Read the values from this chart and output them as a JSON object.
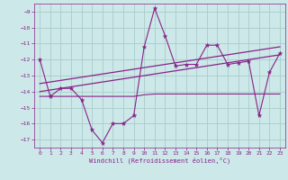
{
  "x": [
    0,
    1,
    2,
    3,
    4,
    5,
    6,
    7,
    8,
    9,
    10,
    11,
    12,
    13,
    14,
    15,
    16,
    17,
    18,
    19,
    20,
    21,
    22,
    23
  ],
  "line_main": [
    -12.0,
    -14.3,
    -13.8,
    -13.8,
    -14.5,
    -16.4,
    -17.2,
    -16.0,
    -16.0,
    -15.5,
    -11.2,
    -8.8,
    -10.5,
    -12.4,
    -12.3,
    -12.3,
    -11.1,
    -11.1,
    -12.3,
    -12.2,
    -12.1,
    -15.5,
    -12.8,
    -11.6
  ],
  "trend_upper": [
    -13.5,
    -13.4,
    -13.3,
    -13.2,
    -13.1,
    -13.0,
    -12.9,
    -12.8,
    -12.7,
    -12.6,
    -12.5,
    -12.4,
    -12.3,
    -12.2,
    -12.1,
    -12.0,
    -11.9,
    -11.8,
    -11.7,
    -11.6,
    -11.5,
    -11.4,
    -11.3,
    -11.2
  ],
  "trend_lower": [
    -14.0,
    -13.9,
    -13.8,
    -13.7,
    -13.6,
    -13.5,
    -13.4,
    -13.3,
    -13.2,
    -13.1,
    -13.0,
    -12.9,
    -12.8,
    -12.7,
    -12.6,
    -12.5,
    -12.4,
    -12.3,
    -12.2,
    -12.1,
    -12.0,
    -11.9,
    -11.8,
    -11.7
  ],
  "line_flat": [
    -14.3,
    -14.3,
    -14.3,
    -14.3,
    -14.3,
    -14.3,
    -14.3,
    -14.3,
    -14.3,
    -14.3,
    -14.2,
    -14.15,
    -14.15,
    -14.15,
    -14.15,
    -14.15,
    -14.15,
    -14.15,
    -14.15,
    -14.15,
    -14.15,
    -14.15,
    -14.15,
    -14.15
  ],
  "color": "#882288",
  "bg_color": "#cce8e8",
  "grid_color": "#aacccc",
  "ylim": [
    -17.5,
    -8.5
  ],
  "xlim": [
    -0.5,
    23.5
  ],
  "yticks": [
    -17,
    -16,
    -15,
    -14,
    -13,
    -12,
    -11,
    -10,
    -9
  ],
  "xticks": [
    0,
    1,
    2,
    3,
    4,
    5,
    6,
    7,
    8,
    9,
    10,
    11,
    12,
    13,
    14,
    15,
    16,
    17,
    18,
    19,
    20,
    21,
    22,
    23
  ],
  "xlabel": "Windchill (Refroidissement éolien,°C)"
}
